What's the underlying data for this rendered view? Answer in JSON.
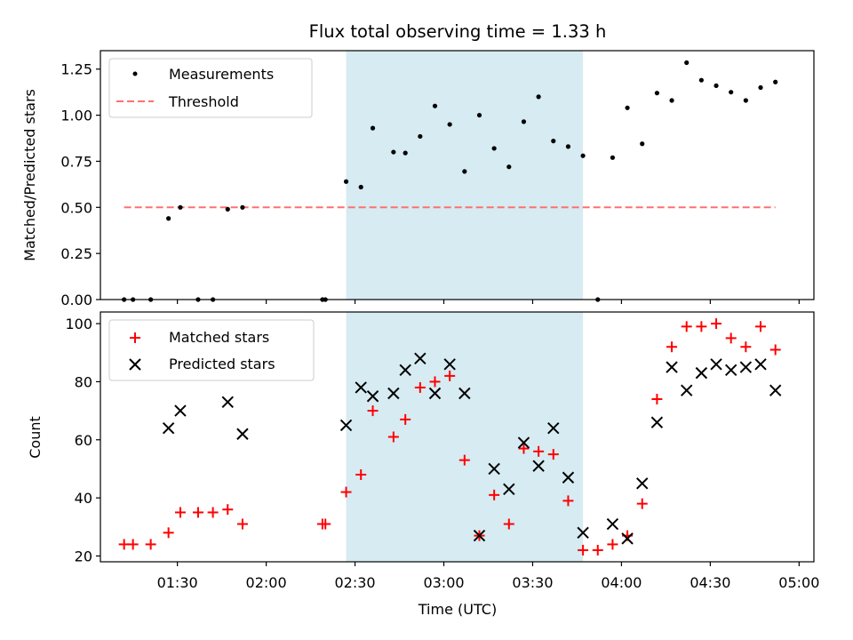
{
  "chart_data": [
    {
      "type": "scatter",
      "title": "Flux total observing time = 1.33 h",
      "xlabel": "",
      "ylabel": "Matched/Predicted stars",
      "ylim": [
        0,
        1.35
      ],
      "yticks": [
        "0.00",
        "0.25",
        "0.50",
        "0.75",
        "1.00",
        "1.25"
      ],
      "shaded_span": {
        "x0": "02:27",
        "x1": "03:47",
        "color": "#add8e6"
      },
      "legend_position": "top-left",
      "series": [
        {
          "name": "Measurements",
          "marker": "dot",
          "color": "#000000",
          "x": [
            "01:12",
            "01:15",
            "01:21",
            "01:27",
            "01:31",
            "01:37",
            "01:42",
            "01:47",
            "01:52",
            "02:19",
            "02:20",
            "02:27",
            "02:32",
            "02:36",
            "02:43",
            "02:47",
            "02:52",
            "02:57",
            "03:02",
            "03:07",
            "03:12",
            "03:17",
            "03:22",
            "03:27",
            "03:32",
            "03:37",
            "03:42",
            "03:47",
            "03:52",
            "03:57",
            "04:02",
            "04:07",
            "04:12",
            "04:17",
            "04:22",
            "04:27",
            "04:32",
            "04:37",
            "04:42",
            "04:47",
            "04:52"
          ],
          "y": [
            0.0,
            0.0,
            0.0,
            0.44,
            0.5,
            0.0,
            0.0,
            0.49,
            0.5,
            0.0,
            0.0,
            0.64,
            0.61,
            0.93,
            0.8,
            0.795,
            0.885,
            1.05,
            0.95,
            0.695,
            1.0,
            0.82,
            0.72,
            0.965,
            1.1,
            0.86,
            0.83,
            0.78,
            0.0,
            0.77,
            1.04,
            0.845,
            1.12,
            1.08,
            1.285,
            1.19,
            1.16,
            1.125,
            1.08,
            1.15,
            1.18
          ]
        },
        {
          "name": "Threshold",
          "marker": "dashed-line",
          "color": "#ff7070",
          "x": [
            "01:12",
            "04:52"
          ],
          "y": [
            0.5,
            0.5
          ]
        }
      ]
    },
    {
      "type": "scatter",
      "title": "",
      "xlabel": "Time (UTC)",
      "ylabel": "Count",
      "ylim": [
        18,
        104
      ],
      "yticks": [
        "20",
        "40",
        "60",
        "80",
        "100"
      ],
      "xticks": [
        "01:30",
        "02:00",
        "02:30",
        "03:00",
        "03:30",
        "04:00",
        "04:30",
        "05:00"
      ],
      "shaded_span": {
        "x0": "02:27",
        "x1": "03:47",
        "color": "#add8e6"
      },
      "legend_position": "top-left",
      "series": [
        {
          "name": "Matched stars",
          "marker": "plus",
          "color": "#ff0000",
          "x": [
            "01:12",
            "01:15",
            "01:21",
            "01:27",
            "01:31",
            "01:37",
            "01:42",
            "01:47",
            "01:52",
            "02:19",
            "02:20",
            "02:27",
            "02:32",
            "02:36",
            "02:43",
            "02:47",
            "02:52",
            "02:57",
            "03:02",
            "03:07",
            "03:12",
            "03:17",
            "03:22",
            "03:27",
            "03:32",
            "03:37",
            "03:42",
            "03:47",
            "03:52",
            "03:57",
            "04:02",
            "04:07",
            "04:12",
            "04:17",
            "04:22",
            "04:27",
            "04:32",
            "04:37",
            "04:42",
            "04:47",
            "04:52"
          ],
          "y": [
            24,
            24,
            24,
            28,
            35,
            35,
            35,
            36,
            31,
            31,
            31,
            42,
            48,
            70,
            61,
            67,
            78,
            80,
            82,
            53,
            27,
            41,
            31,
            57,
            56,
            55,
            39,
            22,
            22,
            24,
            27,
            38,
            74,
            92,
            99,
            99,
            100,
            95,
            92,
            99,
            91
          ]
        },
        {
          "name": "Predicted stars",
          "marker": "x",
          "color": "#000000",
          "x": [
            "01:27",
            "01:31",
            "01:47",
            "01:52",
            "02:27",
            "02:32",
            "02:36",
            "02:43",
            "02:47",
            "02:52",
            "02:57",
            "03:02",
            "03:07",
            "03:12",
            "03:17",
            "03:22",
            "03:27",
            "03:32",
            "03:37",
            "03:42",
            "03:47",
            "03:57",
            "04:02",
            "04:07",
            "04:12",
            "04:17",
            "04:22",
            "04:27",
            "04:32",
            "04:37",
            "04:42",
            "04:47",
            "04:52"
          ],
          "y": [
            64,
            70,
            73,
            62,
            65,
            78,
            75,
            76,
            84,
            88,
            76,
            86,
            76,
            27,
            50,
            43,
            59,
            51,
            64,
            47,
            28,
            31,
            26,
            45,
            66,
            85,
            77,
            83,
            86,
            84,
            85,
            86,
            77
          ]
        }
      ]
    }
  ]
}
